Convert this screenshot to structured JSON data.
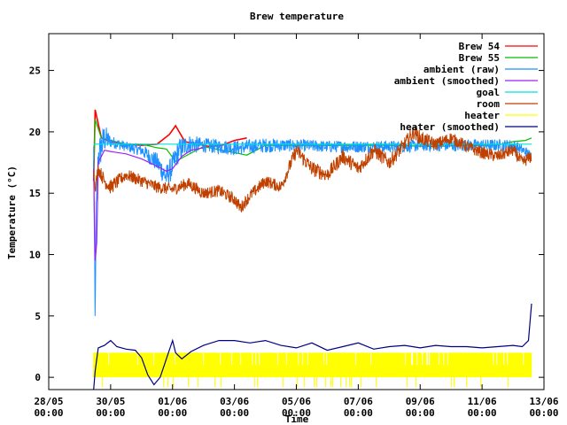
{
  "chart_data": {
    "type": "line",
    "title": "Brew temperature",
    "xlabel": "Time",
    "ylabel": "Temperature (°C)",
    "ylim": [
      -1,
      28
    ],
    "yticks": [
      0,
      5,
      10,
      15,
      20,
      25
    ],
    "x_ticks": [
      {
        "day": 0,
        "label1": "28/05",
        "label2": "00:00"
      },
      {
        "day": 2,
        "label1": "30/05",
        "label2": "00:00"
      },
      {
        "day": 4,
        "label1": "01/06",
        "label2": "00:00"
      },
      {
        "day": 6,
        "label1": "03/06",
        "label2": "00:00"
      },
      {
        "day": 8,
        "label1": "05/06",
        "label2": "00:00"
      },
      {
        "day": 10,
        "label1": "07/06",
        "label2": "00:00"
      },
      {
        "day": 12,
        "label1": "09/06",
        "label2": "00:00"
      },
      {
        "day": 14,
        "label1": "11/06",
        "label2": "00:00"
      },
      {
        "day": 16,
        "label1": "13/06",
        "label2": "00:00"
      }
    ],
    "xlim_days": [
      0,
      16
    ],
    "grid": false,
    "legend_position": "top-right",
    "series": [
      {
        "name": "Brew 54",
        "color": "#ff0000",
        "style": "line",
        "x": [
          1.45,
          1.5,
          1.7,
          2.0,
          2.5,
          3.0,
          3.5,
          3.9,
          4.1,
          4.4,
          4.8,
          5.2,
          5.6,
          6.0,
          6.4
        ],
        "y": [
          16.0,
          21.8,
          19.5,
          19.2,
          19.0,
          18.9,
          19.0,
          19.8,
          20.5,
          19.2,
          19.0,
          18.8,
          18.9,
          19.3,
          19.5
        ]
      },
      {
        "name": "Brew 55",
        "color": "#00c000",
        "style": "line",
        "x": [
          1.45,
          1.5,
          1.7,
          2.0,
          2.5,
          3.0,
          3.5,
          3.8,
          4.1,
          4.4,
          5.0,
          5.6,
          6.2,
          6.4,
          7.0,
          9.0,
          11.0,
          12.5,
          13.5,
          14.4,
          14.6,
          15.0,
          15.4,
          15.6
        ],
        "y": [
          17.0,
          21.0,
          19.5,
          19.3,
          19.0,
          19.0,
          18.7,
          18.6,
          17.6,
          18.0,
          18.8,
          18.5,
          18.2,
          18.1,
          18.9,
          18.9,
          18.9,
          18.8,
          18.9,
          18.9,
          19.0,
          19.2,
          19.3,
          19.5
        ]
      },
      {
        "name": "ambient (raw)",
        "color": "#1e90ff",
        "style": "noisy",
        "x": [
          1.45,
          1.5,
          1.52,
          1.6,
          1.8,
          2.0,
          2.5,
          3.0,
          3.5,
          3.8,
          4.0,
          4.2,
          4.5,
          5.0,
          5.5,
          6.0,
          6.2,
          6.5,
          7.0,
          8.0,
          9.0,
          10.0,
          11.0,
          11.5,
          12.0,
          13.0,
          14.0,
          15.0,
          15.4,
          15.6
        ],
        "y": [
          18.5,
          3.0,
          12.0,
          18.0,
          19.5,
          19.2,
          18.8,
          18.5,
          17.5,
          16.3,
          17.2,
          18.5,
          19.0,
          18.9,
          18.8,
          18.7,
          18.7,
          18.8,
          18.9,
          18.9,
          18.8,
          18.8,
          18.8,
          18.8,
          18.9,
          18.9,
          18.9,
          18.9,
          18.4,
          18.0
        ],
        "amp": [
          1,
          2,
          2,
          1.5,
          1.2,
          0.5,
          0.4,
          0.5,
          0.8,
          1.0,
          1.0,
          1.0,
          0.8,
          0.6,
          0.6,
          0.6,
          0.6,
          0.6,
          0.6,
          0.5,
          0.5,
          0.5,
          0.5,
          0.5,
          0.5,
          0.5,
          0.5,
          0.5,
          0.4,
          0.4
        ]
      },
      {
        "name": "ambient (smoothed)",
        "color": "#a020f0",
        "style": "line",
        "x": [
          1.45,
          1.5,
          1.55,
          1.6,
          1.8,
          2.0,
          2.5,
          3.0,
          3.5,
          3.8,
          4.0,
          4.3,
          4.6,
          5.0
        ],
        "y": [
          17.0,
          9.5,
          11.0,
          17.5,
          18.5,
          18.4,
          18.2,
          17.8,
          17.2,
          16.8,
          17.0,
          18.0,
          18.5,
          18.7
        ]
      },
      {
        "name": "goal",
        "color": "#00e0e0",
        "style": "line",
        "x": [
          1.45,
          15.6
        ],
        "y": [
          19.0,
          19.0
        ]
      },
      {
        "name": "room",
        "color": "#c04000",
        "style": "noisy",
        "x": [
          1.45,
          1.5,
          1.6,
          1.8,
          2.0,
          2.5,
          3.0,
          3.5,
          4.0,
          4.5,
          5.0,
          5.5,
          6.0,
          6.2,
          6.5,
          7.0,
          7.5,
          8.0,
          8.5,
          9.0,
          9.5,
          10.0,
          10.5,
          11.0,
          11.5,
          11.8,
          12.0,
          12.5,
          13.0,
          13.5,
          14.0,
          14.5,
          15.0,
          15.3,
          15.6
        ],
        "y": [
          16.8,
          15.5,
          17.0,
          16.0,
          15.5,
          16.5,
          16.0,
          15.5,
          15.3,
          15.8,
          15.0,
          15.2,
          14.5,
          13.8,
          14.8,
          16.0,
          15.5,
          18.5,
          17.0,
          16.5,
          18.0,
          17.0,
          18.5,
          17.5,
          19.0,
          20.0,
          19.5,
          19.0,
          19.5,
          18.8,
          18.3,
          18.0,
          18.5,
          17.5,
          18.0
        ],
        "amp": [
          0.5,
          0.5,
          0.5,
          0.6,
          0.6,
          0.5,
          0.5,
          0.5,
          0.5,
          0.5,
          0.5,
          0.5,
          0.5,
          0.5,
          0.5,
          0.5,
          0.5,
          0.6,
          0.6,
          0.6,
          0.6,
          0.6,
          0.6,
          0.6,
          0.6,
          0.6,
          0.6,
          0.5,
          0.5,
          0.5,
          0.5,
          0.5,
          0.5,
          0.5,
          0.5
        ]
      },
      {
        "name": "heater",
        "color": "#ffff00",
        "style": "band",
        "x": [
          1.45,
          15.6
        ],
        "y": [
          1.0,
          1.0
        ],
        "band": [
          0.0,
          2.0
        ]
      },
      {
        "name": "heater (smoothed)",
        "color": "#000080",
        "style": "line",
        "x": [
          1.45,
          1.5,
          1.6,
          1.8,
          2.0,
          2.2,
          2.5,
          2.8,
          3.0,
          3.2,
          3.4,
          3.6,
          3.8,
          4.0,
          4.1,
          4.3,
          4.6,
          5.0,
          5.5,
          6.0,
          6.5,
          7.0,
          7.5,
          8.0,
          8.5,
          9.0,
          9.5,
          10.0,
          10.5,
          11.0,
          11.5,
          12.0,
          12.5,
          13.0,
          13.5,
          14.0,
          14.5,
          15.0,
          15.3,
          15.5,
          15.6
        ],
        "y": [
          -1.0,
          0.5,
          2.4,
          2.6,
          3.0,
          2.5,
          2.3,
          2.2,
          1.6,
          0.2,
          -0.6,
          0.0,
          1.5,
          3.0,
          2.0,
          1.5,
          2.1,
          2.6,
          3.0,
          3.0,
          2.8,
          3.0,
          2.6,
          2.4,
          2.8,
          2.2,
          2.5,
          2.8,
          2.3,
          2.5,
          2.6,
          2.4,
          2.6,
          2.5,
          2.5,
          2.4,
          2.5,
          2.6,
          2.5,
          3.0,
          6.0
        ]
      }
    ]
  }
}
